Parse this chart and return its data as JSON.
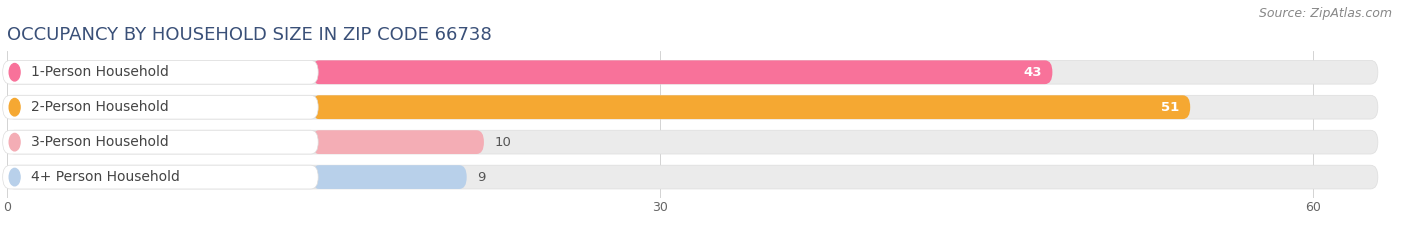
{
  "title": "OCCUPANCY BY HOUSEHOLD SIZE IN ZIP CODE 66738",
  "source": "Source: ZipAtlas.com",
  "categories": [
    "1-Person Household",
    "2-Person Household",
    "3-Person Household",
    "4+ Person Household"
  ],
  "values": [
    43,
    51,
    10,
    9
  ],
  "bar_colors": [
    "#f8729a",
    "#f5a832",
    "#f4adb5",
    "#b8d0ea"
  ],
  "xlim_max": 63,
  "xticks": [
    0,
    30,
    60
  ],
  "background_color": "#ffffff",
  "bar_bg_color": "#ebebeb",
  "label_bg_color": "#ffffff",
  "title_fontsize": 13,
  "source_fontsize": 9,
  "label_fontsize": 10,
  "value_fontsize": 9.5,
  "title_color": "#3a5078",
  "source_color": "#888888",
  "label_color": "#444444",
  "value_color_inside": "#ffffff",
  "value_color_outside": "#555555"
}
